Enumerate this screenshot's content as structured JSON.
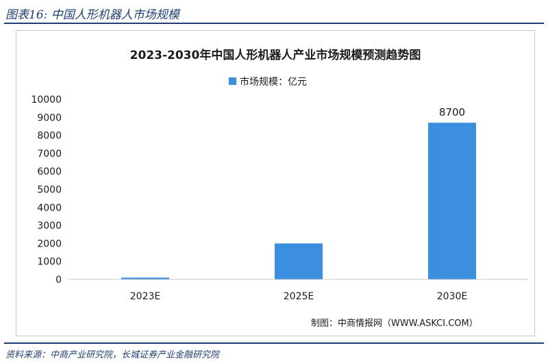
{
  "figure": {
    "label": "图表16:  中国人形机器人市场规模",
    "source": "资料来源：中商产业研究院，长城证券产业金融研究院"
  },
  "chart_data": {
    "type": "bar",
    "title": "2023-2030年中国人形机器人产业市场规模预测趋势图",
    "categories": [
      "2023E",
      "2025E",
      "2030E"
    ],
    "series": [
      {
        "name": "市场规模：亿元",
        "values": [
          100,
          2000,
          8700
        ],
        "color": "#3b8fde"
      }
    ],
    "data_labels": [
      "",
      "",
      "8700"
    ],
    "ylim": [
      0,
      10000
    ],
    "yticks": [
      0,
      1000,
      2000,
      3000,
      4000,
      5000,
      6000,
      7000,
      8000,
      9000,
      10000
    ],
    "xlabel": "",
    "ylabel": "",
    "grid": false,
    "legend_position": "top",
    "credit": "制图：中商情报网（WWW.ASKCI.COM）"
  }
}
